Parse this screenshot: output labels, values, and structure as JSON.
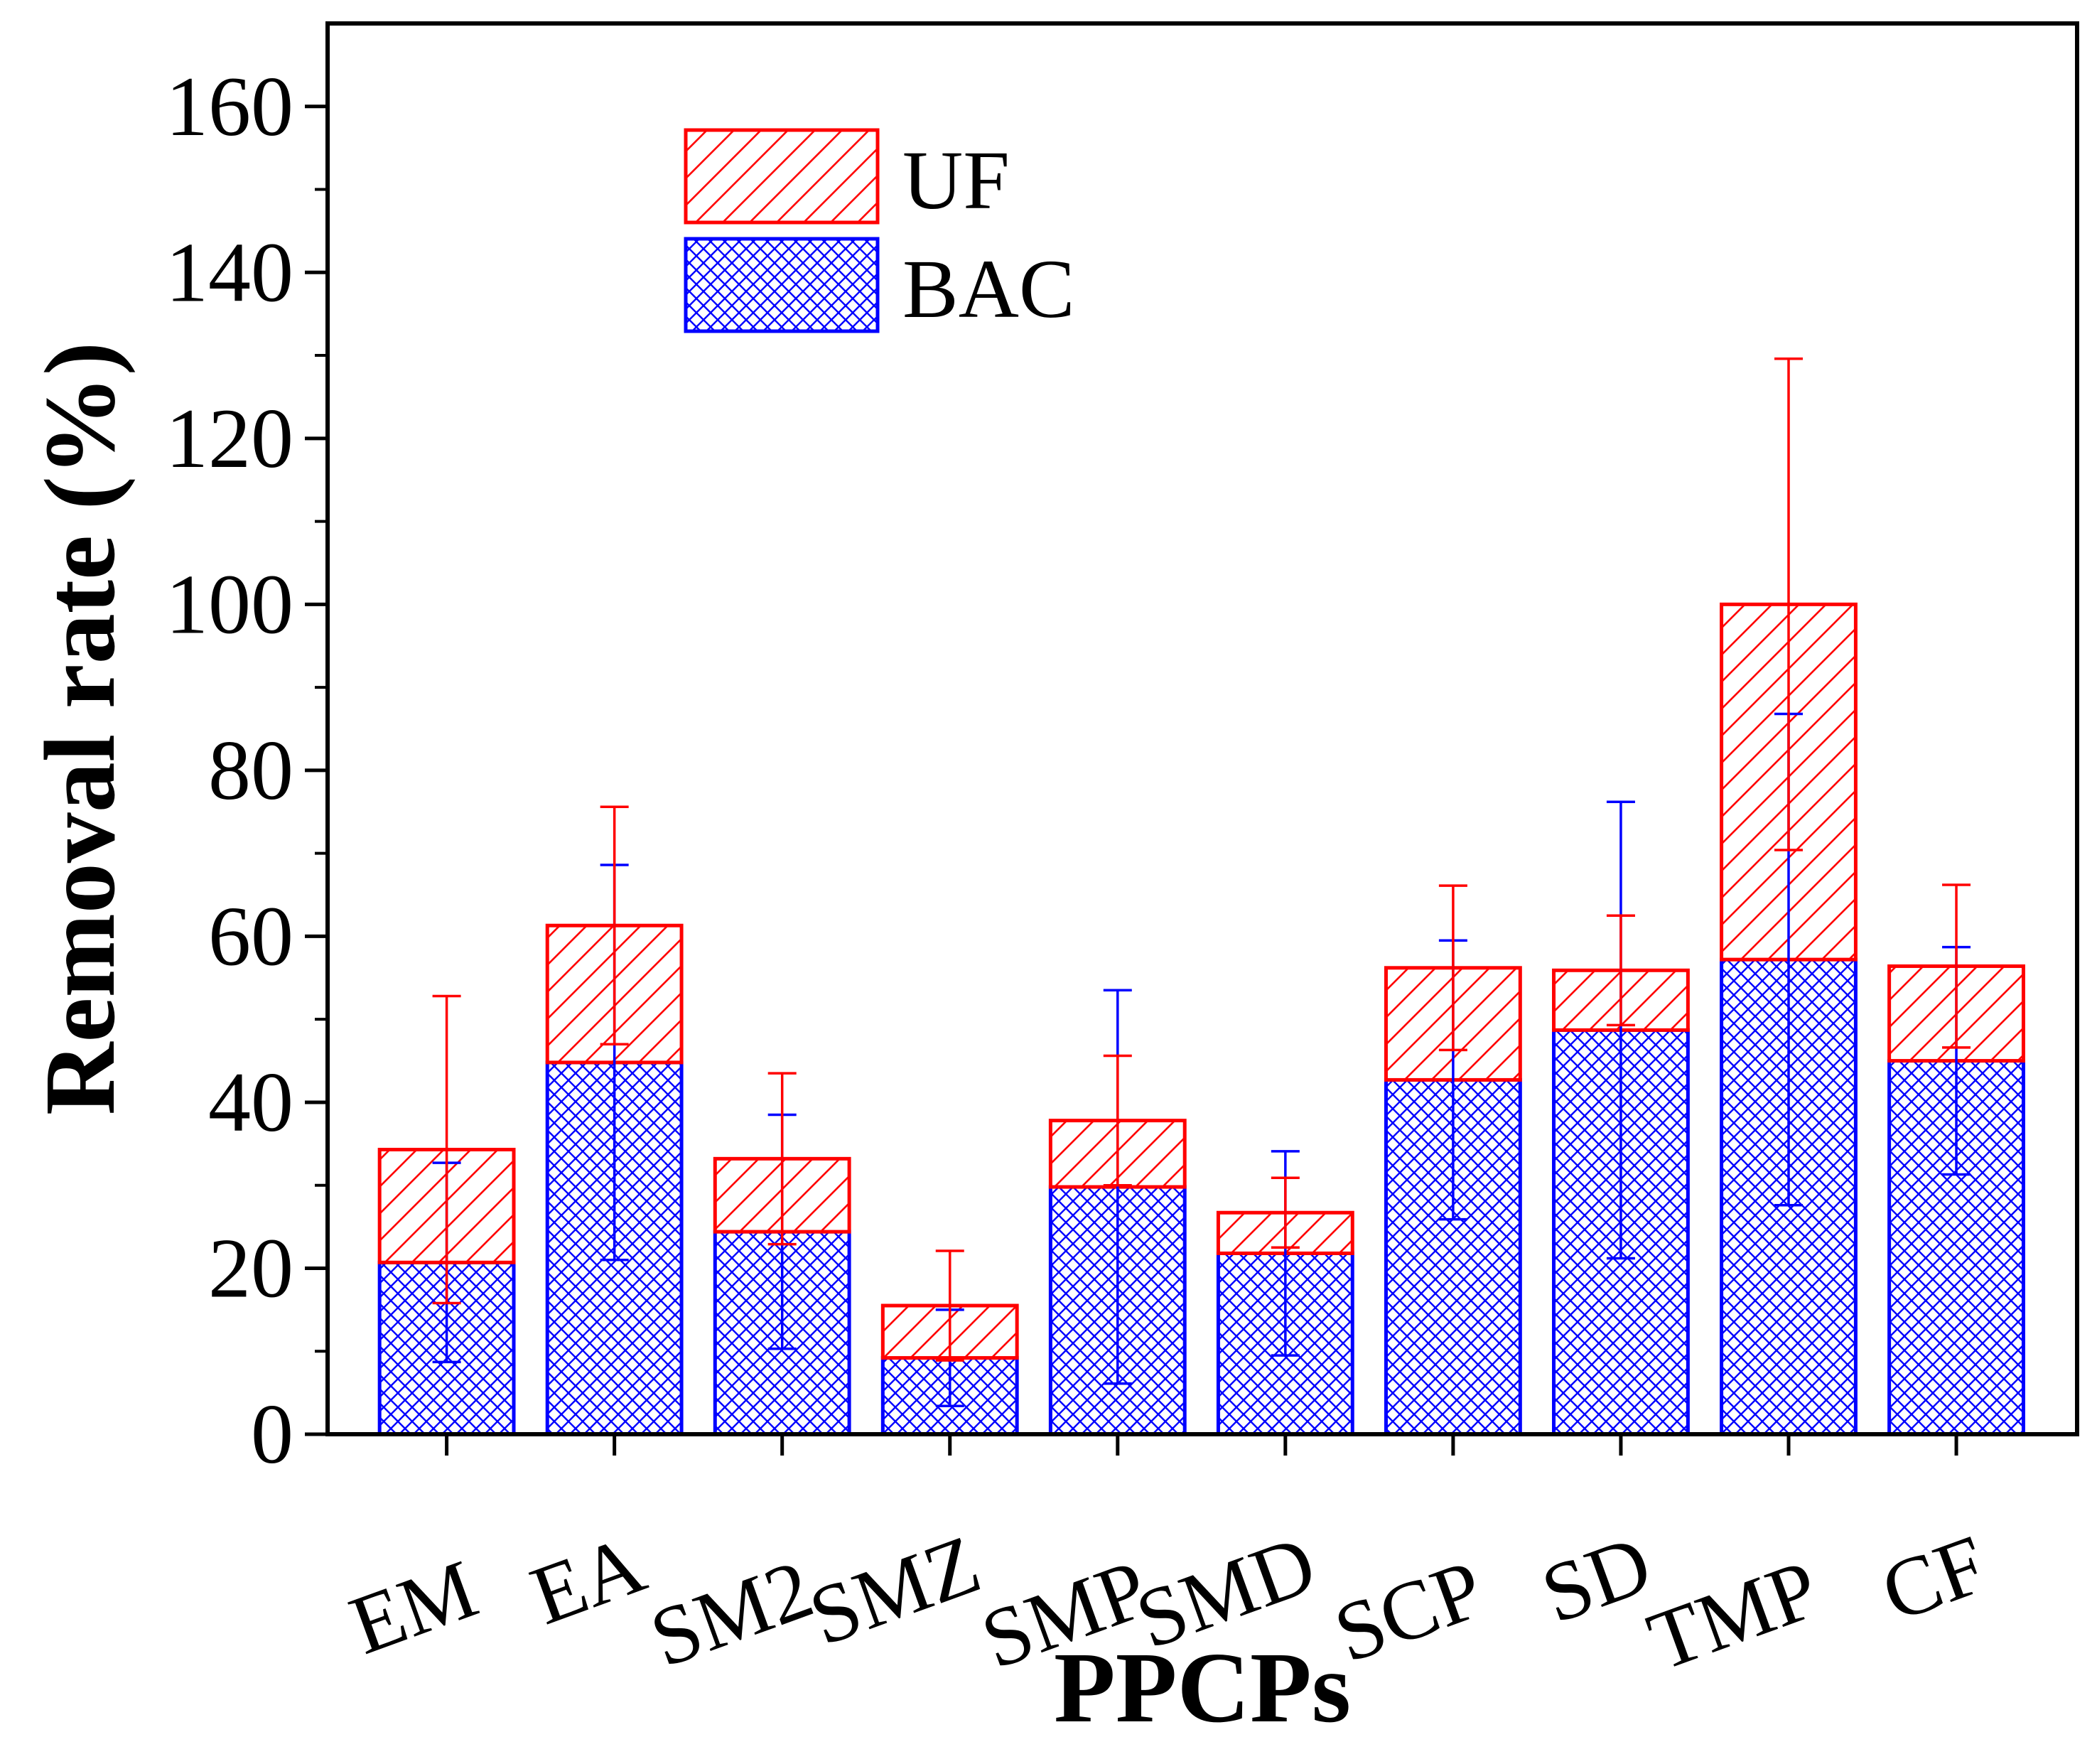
{
  "chart_data": {
    "type": "bar",
    "stacked": true,
    "xlabel": "PPCPs",
    "ylabel": "Removal rate (%)",
    "ylim": [
      0,
      170
    ],
    "yticks": [
      0,
      20,
      40,
      60,
      80,
      100,
      120,
      140,
      160
    ],
    "categories": [
      "EM",
      "EA",
      "SM2",
      "SMZ",
      "SMP",
      "SMD",
      "SCP",
      "SD",
      "TMP",
      "CF"
    ],
    "series": [
      {
        "name": "BAC",
        "color": "#0000ff",
        "pattern": "crosshatch",
        "values": [
          20.7,
          44.8,
          24.4,
          9.2,
          29.8,
          21.8,
          42.7,
          48.7,
          57.2,
          45.0
        ],
        "error": [
          12.0,
          23.8,
          14.1,
          5.8,
          23.7,
          12.3,
          16.8,
          27.5,
          29.6,
          13.7
        ]
      },
      {
        "name": "UF",
        "color": "#ff0000",
        "pattern": "hatch",
        "values": [
          13.6,
          16.5,
          8.8,
          6.3,
          8.0,
          4.9,
          13.5,
          7.2,
          42.8,
          11.4
        ],
        "error": [
          18.5,
          14.3,
          10.3,
          6.6,
          7.8,
          4.2,
          9.9,
          6.6,
          29.6,
          9.8
        ]
      }
    ],
    "legend": {
      "position": "top-left",
      "order": [
        "UF",
        "BAC"
      ]
    }
  }
}
